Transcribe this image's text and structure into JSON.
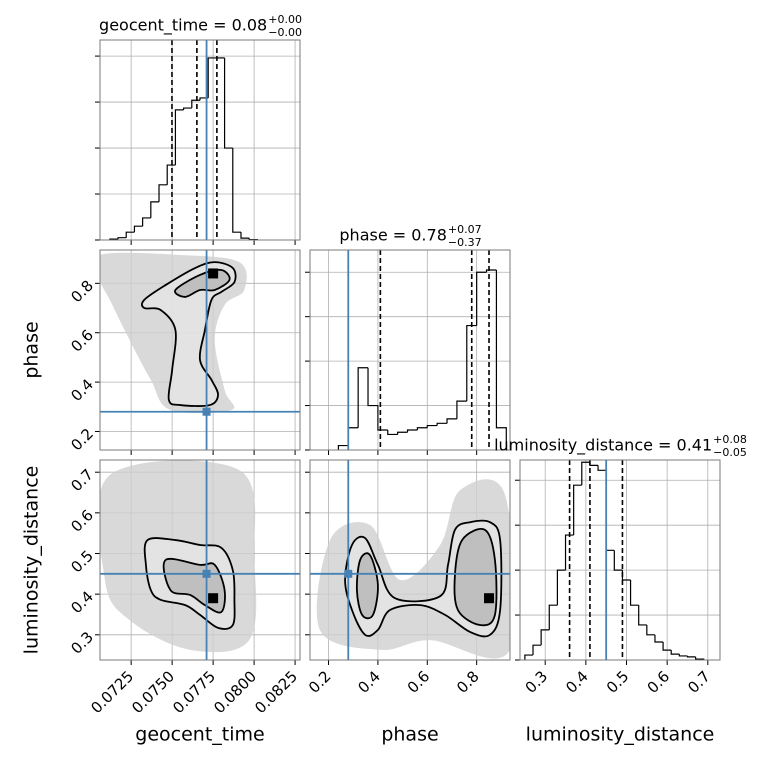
{
  "chart_data": {
    "type": "corner",
    "grid": true,
    "truth_color": "#4682b4",
    "hist_color": "#000000",
    "contour_color": "#000000",
    "cloud_color": "#cfcfcf",
    "fill_colors": [
      "#e4e4e4",
      "#b8b8b8"
    ],
    "parameters": [
      {
        "name": "geocent_time",
        "title": "geocent_time = 0.08",
        "title_plus": "+0.00",
        "title_minus": "−0.00",
        "lim": [
          0.0706,
          0.0828
        ],
        "ticks": [
          0.0725,
          {
            "value": 0.075,
            "label": "0.0750"
          },
          0.0775,
          {
            "value": 0.08,
            "label": "0.0800"
          },
          0.0825
        ],
        "quantiles": [
          0.07499,
          0.07651,
          0.07773
        ],
        "truth": 0.0771,
        "hist": {
          "bins": [
            0.0712,
            0.0717,
            0.0722,
            0.0727,
            0.0732,
            0.0737,
            0.0742,
            0.0747,
            0.0752,
            0.0757,
            0.0762,
            0.0767,
            0.0772,
            0.0777,
            0.0782,
            0.0787,
            0.0792,
            0.0797,
            0.0802
          ],
          "counts": [
            0.02,
            0.05,
            0.17,
            0.3,
            0.48,
            0.83,
            1.2,
            1.63,
            2.83,
            2.87,
            3.04,
            3.09,
            3.96,
            3.96,
            2.0,
            0.17,
            0.04,
            0.01
          ],
          "ylim": [
            0,
            4.35
          ],
          "yticks": [
            0,
            1,
            2,
            3,
            4
          ]
        }
      },
      {
        "name": "phase",
        "title": "phase = 0.78",
        "title_plus": "+0.07",
        "title_minus": "−0.37",
        "lim": [
          0.125,
          0.935
        ],
        "ticks": [
          0.2,
          0.4,
          0.6,
          0.8
        ],
        "quantiles": [
          0.41,
          0.78,
          0.85
        ],
        "truth": 0.28,
        "hist": {
          "bins": [
            0.24,
            0.28,
            0.32,
            0.36,
            0.4,
            0.44,
            0.48,
            0.52,
            0.56,
            0.6,
            0.64,
            0.68,
            0.72,
            0.76,
            0.8,
            0.84,
            0.88,
            0.92
          ],
          "counts": [
            0.1,
            0.5,
            1.85,
            1.0,
            0.45,
            0.35,
            0.4,
            0.45,
            0.5,
            0.55,
            0.6,
            0.7,
            1.1,
            2.8,
            4.0,
            4.05,
            0.5
          ],
          "ylim": [
            0,
            4.5
          ],
          "yticks": [
            0,
            1,
            2,
            3,
            4
          ]
        }
      },
      {
        "name": "luminosity_distance",
        "title": "luminosity_distance = 0.41",
        "title_plus": "+0.08",
        "title_minus": "−0.05",
        "lim": [
          0.238,
          0.73
        ],
        "ticks": [
          0.3,
          0.4,
          0.5,
          0.6,
          0.7
        ],
        "quantiles": [
          0.36,
          0.41,
          0.49
        ],
        "truth": 0.45,
        "hist": {
          "bins": [
            0.25,
            0.27,
            0.29,
            0.31,
            0.33,
            0.35,
            0.37,
            0.39,
            0.41,
            0.43,
            0.45,
            0.47,
            0.49,
            0.51,
            0.53,
            0.55,
            0.57,
            0.59,
            0.61,
            0.63,
            0.65,
            0.67,
            0.69
          ],
          "counts": [
            0.11,
            0.33,
            0.67,
            1.22,
            2.0,
            2.78,
            3.89,
            4.4,
            4.33,
            4.22,
            2.44,
            2.0,
            1.78,
            1.22,
            0.78,
            0.56,
            0.4,
            0.22,
            0.13,
            0.09,
            0.07,
            0.02
          ],
          "ylim": [
            0,
            4.45
          ],
          "yticks": [
            0,
            1,
            2,
            3,
            4
          ]
        }
      }
    ],
    "panels": [
      {
        "cloud": [
          [
            0.0706,
            0.915
          ],
          [
            0.0755,
            0.915
          ],
          [
            0.0791,
            0.886
          ],
          [
            0.0794,
            0.773
          ],
          [
            0.0782,
            0.712
          ],
          [
            0.0776,
            0.571
          ],
          [
            0.0782,
            0.368
          ],
          [
            0.0786,
            0.287
          ],
          [
            0.0749,
            0.287
          ],
          [
            0.0737,
            0.409
          ],
          [
            0.0724,
            0.571
          ],
          [
            0.0712,
            0.733
          ],
          [
            0.0706,
            0.814
          ]
        ],
        "contours": [
          [
            [
              0.0733,
              0.733
            ],
            [
              0.0746,
              0.793
            ],
            [
              0.0764,
              0.862
            ],
            [
              0.0776,
              0.886
            ],
            [
              0.0787,
              0.862
            ],
            [
              0.0788,
              0.805
            ],
            [
              0.078,
              0.765
            ],
            [
              0.0774,
              0.733
            ],
            [
              0.077,
              0.611
            ],
            [
              0.0767,
              0.49
            ],
            [
              0.0774,
              0.409
            ],
            [
              0.0778,
              0.348
            ],
            [
              0.0773,
              0.307
            ],
            [
              0.0755,
              0.307
            ],
            [
              0.0748,
              0.328
            ],
            [
              0.075,
              0.449
            ],
            [
              0.0752,
              0.611
            ],
            [
              0.0743,
              0.692
            ],
            [
              0.0733,
              0.7
            ]
          ],
          [
            [
              0.0752,
              0.773
            ],
            [
              0.0767,
              0.834
            ],
            [
              0.078,
              0.854
            ],
            [
              0.0785,
              0.814
            ],
            [
              0.0776,
              0.773
            ],
            [
              0.0767,
              0.773
            ],
            [
              0.0758,
              0.745
            ]
          ]
        ],
        "peak": [
          0.0775,
          0.84
        ]
      },
      {
        "cloud": [
          [
            0.0712,
            0.693
          ],
          [
            0.0791,
            0.705
          ],
          [
            0.08,
            0.484
          ],
          [
            0.0797,
            0.287
          ],
          [
            0.0761,
            0.263
          ],
          [
            0.0724,
            0.336
          ],
          [
            0.0709,
            0.435
          ]
        ],
        "contours": [
          [
            [
              0.0735,
              0.533
            ],
            [
              0.0752,
              0.533
            ],
            [
              0.0767,
              0.521
            ],
            [
              0.078,
              0.514
            ],
            [
              0.0787,
              0.459
            ],
            [
              0.0788,
              0.386
            ],
            [
              0.0787,
              0.324
            ],
            [
              0.0778,
              0.317
            ],
            [
              0.0767,
              0.349
            ],
            [
              0.0758,
              0.373
            ],
            [
              0.0743,
              0.386
            ],
            [
              0.0737,
              0.41
            ],
            [
              0.0734,
              0.472
            ]
          ],
          [
            [
              0.0746,
              0.484
            ],
            [
              0.0767,
              0.472
            ],
            [
              0.0776,
              0.472
            ],
            [
              0.0782,
              0.41
            ],
            [
              0.078,
              0.356
            ],
            [
              0.077,
              0.373
            ],
            [
              0.0761,
              0.398
            ],
            [
              0.0749,
              0.41
            ]
          ]
        ],
        "peak": [
          0.0775,
          0.39
        ]
      },
      {
        "cloud": [
          [
            0.206,
            0.533
          ],
          [
            0.368,
            0.57
          ],
          [
            0.49,
            0.435
          ],
          [
            0.652,
            0.521
          ],
          [
            0.733,
            0.656
          ],
          [
            0.915,
            0.644
          ],
          [
            0.935,
            0.263
          ],
          [
            0.611,
            0.287
          ],
          [
            0.409,
            0.263
          ],
          [
            0.165,
            0.312
          ]
        ],
        "contours": [
          [
            [
              0.295,
              0.521
            ],
            [
              0.348,
              0.538
            ],
            [
              0.4,
              0.472
            ],
            [
              0.469,
              0.39
            ],
            [
              0.652,
              0.395
            ],
            [
              0.684,
              0.472
            ],
            [
              0.712,
              0.558
            ],
            [
              0.773,
              0.577
            ],
            [
              0.854,
              0.577
            ],
            [
              0.895,
              0.533
            ],
            [
              0.895,
              0.361
            ],
            [
              0.854,
              0.3
            ],
            [
              0.773,
              0.307
            ],
            [
              0.672,
              0.349
            ],
            [
              0.571,
              0.373
            ],
            [
              0.449,
              0.361
            ],
            [
              0.4,
              0.312
            ],
            [
              0.348,
              0.3
            ],
            [
              0.295,
              0.361
            ],
            [
              0.267,
              0.435
            ]
          ],
          [
            [
              0.328,
              0.484
            ],
            [
              0.368,
              0.496
            ],
            [
              0.4,
              0.423
            ],
            [
              0.38,
              0.349
            ],
            [
              0.336,
              0.349
            ],
            [
              0.315,
              0.41
            ]
          ],
          [
            [
              0.741,
              0.533
            ],
            [
              0.834,
              0.558
            ],
            [
              0.874,
              0.484
            ],
            [
              0.874,
              0.349
            ],
            [
              0.814,
              0.324
            ],
            [
              0.724,
              0.361
            ],
            [
              0.712,
              0.447
            ]
          ]
        ],
        "peak": [
          0.85,
          0.39
        ]
      }
    ]
  }
}
